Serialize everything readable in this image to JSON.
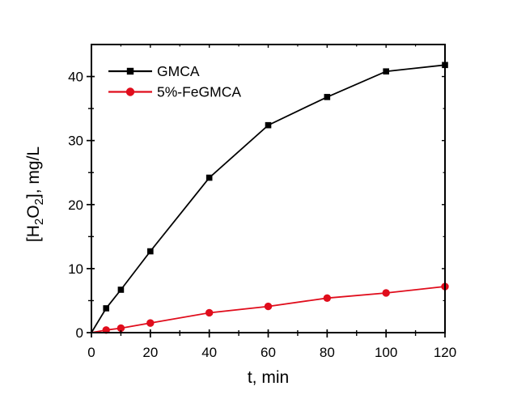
{
  "chart_data": {
    "type": "line",
    "title": "",
    "xlabel": "t, min",
    "ylabel": "[H2O2], mg/L",
    "ylabel_rich": [
      {
        "text": "[H",
        "sub": false
      },
      {
        "text": "2",
        "sub": true
      },
      {
        "text": "O",
        "sub": false
      },
      {
        "text": "2",
        "sub": true
      },
      {
        "text": "], mg/L",
        "sub": false
      }
    ],
    "xlim": [
      0,
      120
    ],
    "ylim": [
      0,
      45
    ],
    "x_major_ticks": [
      0,
      20,
      40,
      60,
      80,
      100,
      120
    ],
    "x_minor_ticks": [
      10,
      30,
      50,
      70,
      90,
      110
    ],
    "y_major_ticks": [
      0,
      10,
      20,
      30,
      40
    ],
    "y_minor_ticks": [
      5,
      15,
      25,
      35
    ],
    "grid": false,
    "legend_position": "top-left",
    "axis_color": "#000000",
    "background": "#ffffff",
    "x": [
      0,
      5,
      10,
      20,
      40,
      60,
      80,
      100,
      120
    ],
    "series": [
      {
        "name": "GMCA",
        "color": "#000000",
        "marker": "square",
        "values": [
          0,
          3.8,
          6.7,
          12.7,
          24.2,
          32.4,
          36.8,
          40.8,
          41.8
        ]
      },
      {
        "name": "5%-FeGMCA",
        "color": "#e00d1c",
        "marker": "circle",
        "values": [
          0,
          0.4,
          0.7,
          1.5,
          3.1,
          4.1,
          5.4,
          6.2,
          7.2
        ]
      }
    ]
  }
}
